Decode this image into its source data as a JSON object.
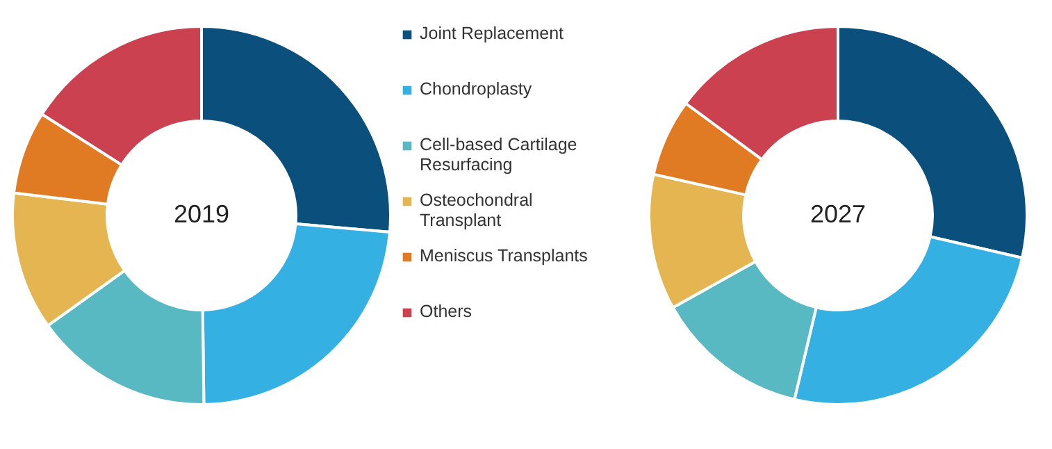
{
  "chart_data": [
    {
      "type": "donut",
      "title": "2019",
      "legend": "right",
      "categories": [
        "Joint Replacement",
        "Chondroplasty",
        "Cell-based Cartilage Resurfacing",
        "Osteochondral Transplant",
        "Meniscus Transplants",
        "Others"
      ],
      "values": [
        26.4,
        23.4,
        15.3,
        11.8,
        7.1,
        16.0
      ],
      "colors": [
        "#0b4f7c",
        "#35b0e2",
        "#58b9c2",
        "#e4b550",
        "#e07b24",
        "#cb4150"
      ]
    },
    {
      "type": "donut",
      "title": "2027",
      "values": [
        28.6,
        25.1,
        13.2,
        11.6,
        6.6,
        14.9
      ],
      "colors": [
        "#0b4f7c",
        "#35b0e2",
        "#58b9c2",
        "#e4b550",
        "#e07b24",
        "#cb4150"
      ]
    }
  ]
}
